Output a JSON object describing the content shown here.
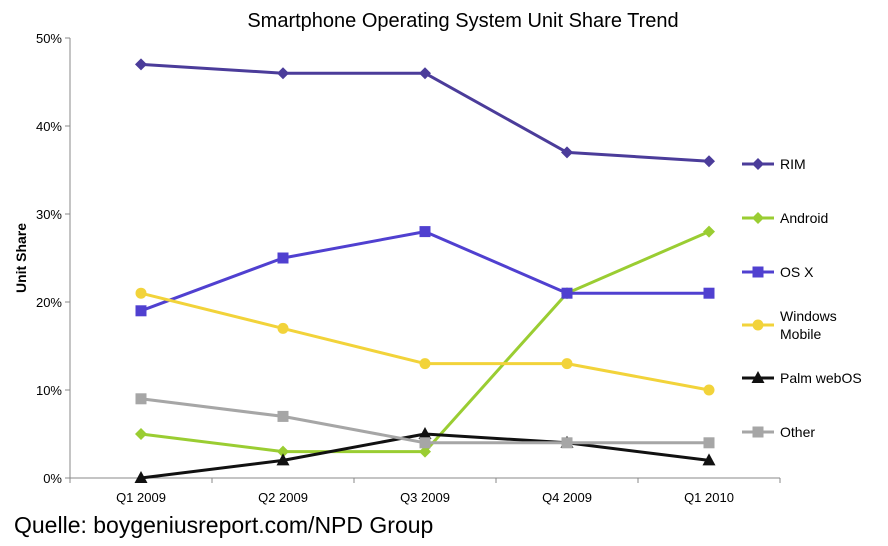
{
  "chart_data": {
    "type": "line",
    "title": "Smartphone Operating System Unit Share Trend",
    "xlabel": "",
    "ylabel": "Unit Share",
    "categories": [
      "Q1 2009",
      "Q2 2009",
      "Q3 2009",
      "Q4 2009",
      "Q1 2010"
    ],
    "ylim": [
      0,
      50
    ],
    "yticks": [
      "0%",
      "10%",
      "20%",
      "30%",
      "40%",
      "50%"
    ],
    "grid": false,
    "legend_position": "right",
    "series": [
      {
        "name": "RIM",
        "color": "#4b3c9a",
        "marker": "diamond",
        "values": [
          47,
          46,
          46,
          37,
          36
        ]
      },
      {
        "name": "Android",
        "color": "#9acd32",
        "marker": "diamond",
        "values": [
          5,
          3,
          3,
          21,
          28
        ]
      },
      {
        "name": "OS X",
        "color": "#5040d0",
        "marker": "square",
        "values": [
          19,
          25,
          28,
          21,
          21
        ]
      },
      {
        "name": "Windows Mobile",
        "color": "#f2d33a",
        "marker": "circle",
        "values": [
          21,
          17,
          13,
          13,
          10
        ]
      },
      {
        "name": "Palm webOS",
        "color": "#111111",
        "marker": "triangle",
        "values": [
          0,
          2,
          5,
          4,
          2
        ]
      },
      {
        "name": "Other",
        "color": "#a6a6a6",
        "marker": "square",
        "values": [
          9,
          7,
          4,
          4,
          4
        ]
      }
    ]
  },
  "source_note": "Quelle: boygeniusreport.com/NPD Group"
}
